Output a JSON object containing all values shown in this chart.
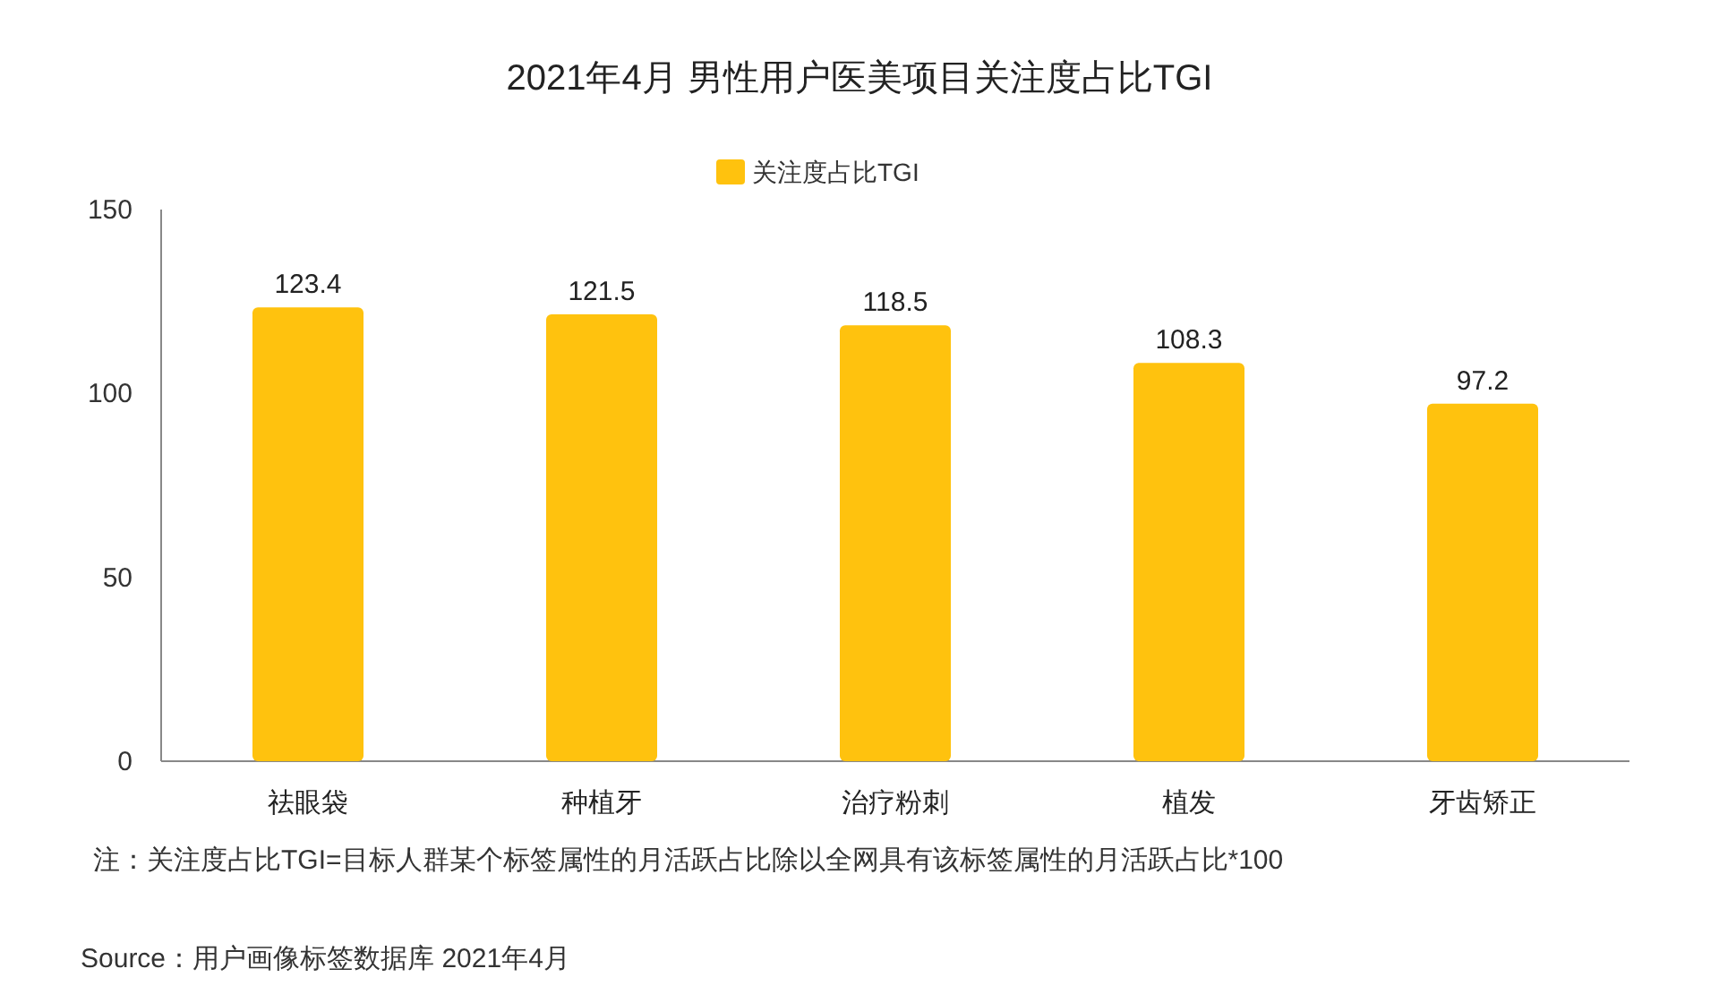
{
  "chart_data": {
    "type": "bar",
    "title": "2021年4月 男性用户医美项目关注度占比TGI",
    "categories": [
      "祛眼袋",
      "种植牙",
      "治疗粉刺",
      "植发",
      "牙齿矫正"
    ],
    "series": [
      {
        "name": "关注度占比TGI",
        "color": "#ffc20e",
        "values": [
          123.4,
          121.5,
          118.5,
          108.3,
          97.2
        ]
      }
    ],
    "ylim": [
      0,
      150
    ],
    "yticks": [
      0,
      50,
      100,
      150
    ],
    "grid": false,
    "legend": "top",
    "data_labels": true,
    "annotations": [
      "注：关注度占比TGI=目标人群某个标签属性的月活跃占比除以全网具有该标签属性的月活跃占比*100",
      "Source：用户画像标签数据库 2021年4月"
    ]
  }
}
